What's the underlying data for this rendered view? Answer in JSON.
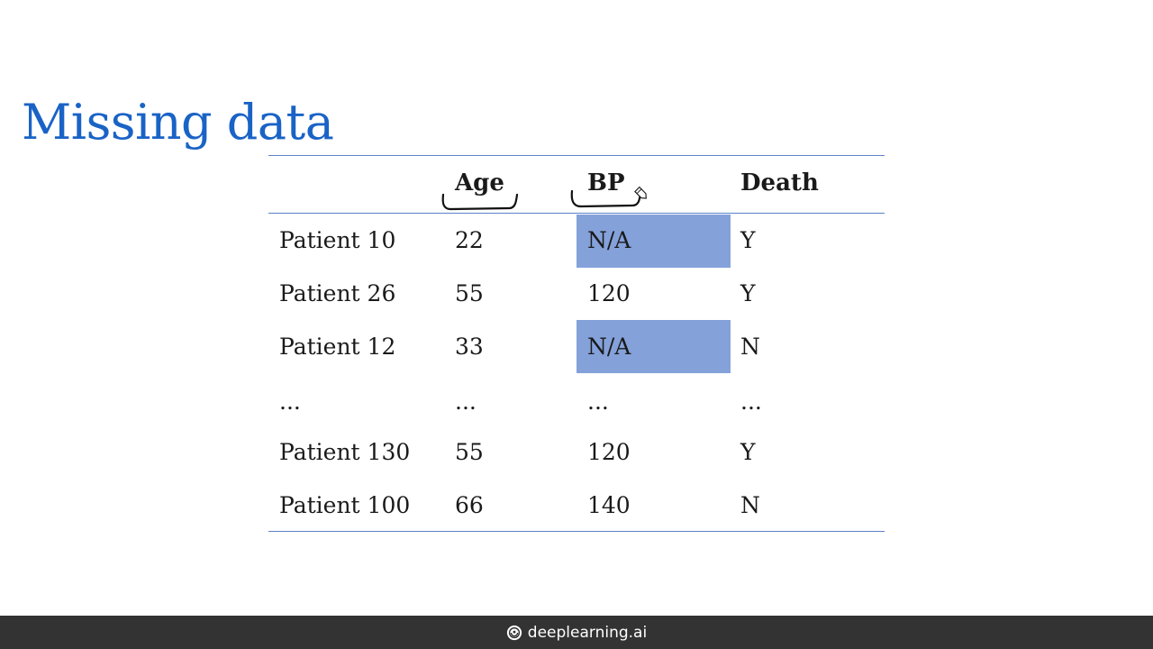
{
  "slide": {
    "title": "Missing data"
  },
  "table": {
    "headers": [
      "",
      "Age",
      "BP",
      "Death"
    ],
    "rows": [
      [
        "Patient 10",
        "22",
        "N/A",
        "Y"
      ],
      [
        "Patient 26",
        "55",
        "120",
        "Y"
      ],
      [
        "Patient 12",
        "33",
        "N/A",
        "N"
      ],
      [
        "...",
        "...",
        "...",
        "..."
      ],
      [
        "Patient 130",
        "55",
        "120",
        "Y"
      ],
      [
        "Patient 100",
        "66",
        "140",
        "N"
      ]
    ],
    "highlighted_cells": [
      {
        "row": 0,
        "column": "BP"
      },
      {
        "row": 2,
        "column": "BP"
      }
    ]
  },
  "annotations": {
    "bracket_under": [
      "Age",
      "BP"
    ],
    "cursor_icon": "pen-cursor-icon"
  },
  "footer": {
    "brand_icon": "deeplearning-logo-icon",
    "brand_text": "deeplearning.ai"
  },
  "colors": {
    "title": "#1a63c6",
    "rule": "#5a82c8",
    "highlight": "#84a1da",
    "footer_bg": "#333333",
    "footer_text": "#ffffff"
  }
}
